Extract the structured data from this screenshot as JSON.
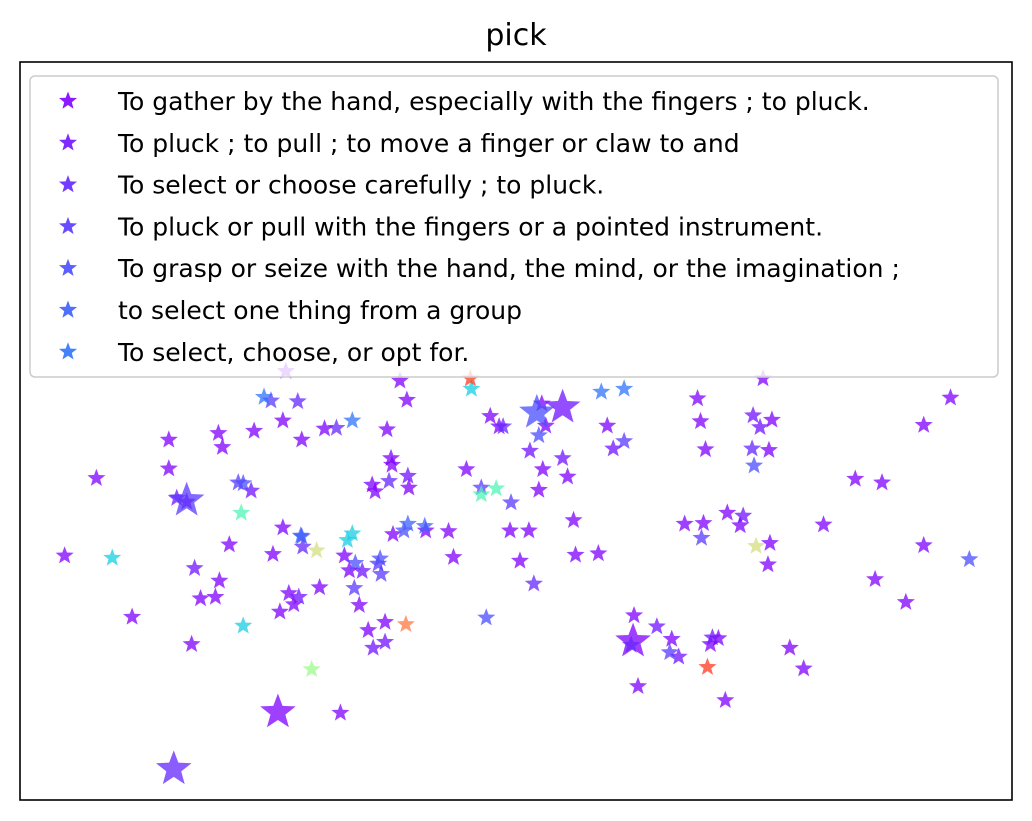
{
  "chart_data": {
    "type": "scatter",
    "title": "pick",
    "xlabel": "",
    "ylabel": "",
    "xlim": [
      0,
      100
    ],
    "ylim": [
      0,
      100
    ],
    "grid": false,
    "axis_ticks": false,
    "marker": "star",
    "legend_position": "upper-left",
    "series": [
      {
        "name": "To gather by the hand, especially with the fingers ; to pluck.",
        "color": "#8000ff",
        "points": [
          {
            "x": 4.5,
            "y": 33.1,
            "s": 1
          },
          {
            "x": 7.7,
            "y": 43.6,
            "s": 1
          },
          {
            "x": 11.3,
            "y": 24.8,
            "s": 1
          },
          {
            "x": 15.0,
            "y": 48.8,
            "s": 1
          },
          {
            "x": 15.0,
            "y": 44.9,
            "s": 1
          },
          {
            "x": 16.8,
            "y": 40.4,
            "s": 1
          },
          {
            "x": 17.3,
            "y": 21.1,
            "s": 1
          },
          {
            "x": 18.2,
            "y": 27.3,
            "s": 1
          },
          {
            "x": 19.7,
            "y": 27.5,
            "s": 1
          },
          {
            "x": 20.1,
            "y": 29.7,
            "s": 1
          },
          {
            "x": 20.0,
            "y": 49.7,
            "s": 1
          },
          {
            "x": 20.4,
            "y": 47.8,
            "s": 1
          },
          {
            "x": 21.1,
            "y": 34.6,
            "s": 1
          },
          {
            "x": 23.6,
            "y": 50.0,
            "s": 1
          },
          {
            "x": 26.0,
            "y": 11.9,
            "s": 3.5
          },
          {
            "x": 25.5,
            "y": 33.3,
            "s": 1
          },
          {
            "x": 26.2,
            "y": 25.5,
            "s": 1
          },
          {
            "x": 26.5,
            "y": 36.9,
            "s": 1
          },
          {
            "x": 26.5,
            "y": 51.4,
            "s": 1
          },
          {
            "x": 26.8,
            "y": 58.1,
            "s": 1
          },
          {
            "x": 27.1,
            "y": 28.0,
            "s": 1
          },
          {
            "x": 27.6,
            "y": 26.5,
            "s": 1
          },
          {
            "x": 28.4,
            "y": 48.8,
            "s": 1
          },
          {
            "x": 30.2,
            "y": 28.8,
            "s": 1
          },
          {
            "x": 30.7,
            "y": 50.3,
            "s": 1
          },
          {
            "x": 32.3,
            "y": 11.8,
            "s": 1
          },
          {
            "x": 32.7,
            "y": 33.1,
            "s": 1
          },
          {
            "x": 33.2,
            "y": 31.1,
            "s": 1
          },
          {
            "x": 34.2,
            "y": 26.4,
            "s": 1
          },
          {
            "x": 35.1,
            "y": 23.0,
            "s": 1
          },
          {
            "x": 35.5,
            "y": 42.7,
            "s": 1
          },
          {
            "x": 35.8,
            "y": 41.8,
            "s": 1
          },
          {
            "x": 36.8,
            "y": 24.1,
            "s": 1
          },
          {
            "x": 37.0,
            "y": 50.2,
            "s": 1
          },
          {
            "x": 37.4,
            "y": 46.3,
            "s": 1
          },
          {
            "x": 37.5,
            "y": 45.4,
            "s": 1
          },
          {
            "x": 37.6,
            "y": 36.0,
            "s": 1
          },
          {
            "x": 38.3,
            "y": 56.8,
            "s": 1
          },
          {
            "x": 39.0,
            "y": 54.2,
            "s": 1
          },
          {
            "x": 39.2,
            "y": 42.3,
            "s": 1
          },
          {
            "x": 40.9,
            "y": 36.5,
            "s": 1
          },
          {
            "x": 43.2,
            "y": 36.4,
            "s": 1
          },
          {
            "x": 43.7,
            "y": 32.9,
            "s": 1
          },
          {
            "x": 45.0,
            "y": 44.8,
            "s": 1
          },
          {
            "x": 47.4,
            "y": 52.0,
            "s": 1
          },
          {
            "x": 48.3,
            "y": 50.6,
            "s": 1
          },
          {
            "x": 49.4,
            "y": 36.5,
            "s": 1
          },
          {
            "x": 50.4,
            "y": 32.4,
            "s": 1
          },
          {
            "x": 51.3,
            "y": 36.5,
            "s": 1
          },
          {
            "x": 52.3,
            "y": 42.0,
            "s": 1
          },
          {
            "x": 52.6,
            "y": 53.7,
            "s": 1
          },
          {
            "x": 52.7,
            "y": 44.8,
            "s": 1
          },
          {
            "x": 53.0,
            "y": 50.7,
            "s": 1
          },
          {
            "x": 55.2,
            "y": 43.8,
            "s": 1
          },
          {
            "x": 55.8,
            "y": 37.9,
            "s": 1
          },
          {
            "x": 56.0,
            "y": 33.2,
            "s": 1
          },
          {
            "x": 58.3,
            "y": 33.4,
            "s": 1
          },
          {
            "x": 59.2,
            "y": 50.7,
            "s": 1
          },
          {
            "x": 61.9,
            "y": 25.0,
            "s": 1
          },
          {
            "x": 61.8,
            "y": 21.5,
            "s": 3.5
          },
          {
            "x": 62.3,
            "y": 15.4,
            "s": 1
          },
          {
            "x": 65.7,
            "y": 21.8,
            "s": 1
          },
          {
            "x": 67.0,
            "y": 37.4,
            "s": 1
          },
          {
            "x": 68.3,
            "y": 54.4,
            "s": 1
          },
          {
            "x": 68.6,
            "y": 51.3,
            "s": 1
          },
          {
            "x": 69.1,
            "y": 47.5,
            "s": 1
          },
          {
            "x": 68.9,
            "y": 37.5,
            "s": 1
          },
          {
            "x": 69.6,
            "y": 21.1,
            "s": 1
          },
          {
            "x": 70.4,
            "y": 21.9,
            "s": 1
          },
          {
            "x": 71.1,
            "y": 13.5,
            "s": 1
          },
          {
            "x": 71.3,
            "y": 38.9,
            "s": 1
          },
          {
            "x": 72.6,
            "y": 37.2,
            "s": 1
          },
          {
            "x": 74.9,
            "y": 57.1,
            "s": 1
          },
          {
            "x": 75.6,
            "y": 34.8,
            "s": 1
          },
          {
            "x": 75.5,
            "y": 47.4,
            "s": 1
          },
          {
            "x": 75.8,
            "y": 51.5,
            "s": 1
          },
          {
            "x": 75.4,
            "y": 31.9,
            "s": 1
          },
          {
            "x": 77.6,
            "y": 20.6,
            "s": 1
          },
          {
            "x": 79.0,
            "y": 17.8,
            "s": 1
          },
          {
            "x": 81.0,
            "y": 37.3,
            "s": 1
          },
          {
            "x": 84.2,
            "y": 43.5,
            "s": 1
          },
          {
            "x": 86.9,
            "y": 43.0,
            "s": 1
          },
          {
            "x": 86.2,
            "y": 29.9,
            "s": 1
          },
          {
            "x": 89.3,
            "y": 26.8,
            "s": 1
          },
          {
            "x": 91.1,
            "y": 34.5,
            "s": 1
          },
          {
            "x": 91.1,
            "y": 50.8,
            "s": 1
          },
          {
            "x": 93.8,
            "y": 54.5,
            "s": 1
          }
        ]
      },
      {
        "name": "To pluck ; to pull ; to move a finger or claw to and",
        "color": "#7213ff",
        "points": [
          {
            "x": 15.8,
            "y": 40.9,
            "s": 1
          },
          {
            "x": 17.6,
            "y": 31.4,
            "s": 1
          },
          {
            "x": 23.3,
            "y": 41.9,
            "s": 1
          },
          {
            "x": 28.1,
            "y": 27.5,
            "s": 1
          },
          {
            "x": 34.5,
            "y": 31.0,
            "s": 1
          },
          {
            "x": 35.6,
            "y": 20.6,
            "s": 1
          },
          {
            "x": 36.8,
            "y": 21.4,
            "s": 1
          },
          {
            "x": 39.1,
            "y": 43.9,
            "s": 1
          },
          {
            "x": 51.4,
            "y": 47.3,
            "s": 1
          },
          {
            "x": 54.7,
            "y": 53.2,
            "s": 3.5
          },
          {
            "x": 54.7,
            "y": 46.3,
            "s": 1
          },
          {
            "x": 59.8,
            "y": 47.6,
            "s": 1
          },
          {
            "x": 64.2,
            "y": 23.5,
            "s": 1
          },
          {
            "x": 66.4,
            "y": 19.4,
            "s": 1
          },
          {
            "x": 69.8,
            "y": 22.0,
            "s": 1
          },
          {
            "x": 72.9,
            "y": 38.5,
            "s": 1
          },
          {
            "x": 73.9,
            "y": 52.1,
            "s": 1
          },
          {
            "x": 74.6,
            "y": 50.5,
            "s": 1
          }
        ]
      },
      {
        "name": "To select or choose carefully ; to pluck.",
        "color": "#6427fe",
        "points": [
          {
            "x": 15.5,
            "y": 4.2,
            "s": 3.5
          },
          {
            "x": 28.0,
            "y": 54.0,
            "s": 1
          },
          {
            "x": 28.5,
            "y": 34.3,
            "s": 1
          },
          {
            "x": 31.9,
            "y": 50.4,
            "s": 1
          },
          {
            "x": 37.2,
            "y": 43.2,
            "s": 1
          },
          {
            "x": 48.7,
            "y": 50.6,
            "s": 1
          },
          {
            "x": 51.8,
            "y": 29.3,
            "s": 1
          },
          {
            "x": 61.6,
            "y": 21.0,
            "s": 1
          },
          {
            "x": 73.8,
            "y": 47.6,
            "s": 1
          }
        ]
      },
      {
        "name": "To pluck or pull with the fingers or a pointed instrument.",
        "color": "#583afe",
        "points": [
          {
            "x": 16.8,
            "y": 40.6,
            "s": 3.5
          },
          {
            "x": 25.3,
            "y": 54.1,
            "s": 1
          },
          {
            "x": 22.0,
            "y": 43.0,
            "s": 1
          },
          {
            "x": 33.7,
            "y": 28.7,
            "s": 1
          },
          {
            "x": 36.1,
            "y": 32.0,
            "s": 1
          },
          {
            "x": 36.4,
            "y": 30.6,
            "s": 1
          },
          {
            "x": 46.5,
            "y": 42.3,
            "s": 1
          },
          {
            "x": 49.5,
            "y": 40.3,
            "s": 1
          },
          {
            "x": 60.9,
            "y": 48.6,
            "s": 1
          },
          {
            "x": 65.5,
            "y": 20.0,
            "s": 1
          },
          {
            "x": 68.7,
            "y": 35.5,
            "s": 1
          }
        ]
      },
      {
        "name": "To grasp or seize with the hand, the mind, or the imagination ;",
        "color": "#4a4efd",
        "points": [
          {
            "x": 22.5,
            "y": 42.9,
            "s": 1
          },
          {
            "x": 28.4,
            "y": 35.7,
            "s": 1
          },
          {
            "x": 33.8,
            "y": 32.1,
            "s": 1
          },
          {
            "x": 36.3,
            "y": 32.7,
            "s": 1
          },
          {
            "x": 38.7,
            "y": 36.5,
            "s": 1
          },
          {
            "x": 47.0,
            "y": 24.7,
            "s": 1
          },
          {
            "x": 52.1,
            "y": 52.5,
            "s": 3.5
          },
          {
            "x": 52.3,
            "y": 49.4,
            "s": 1
          },
          {
            "x": 74.0,
            "y": 45.3,
            "s": 1
          },
          {
            "x": 95.7,
            "y": 32.6,
            "s": 1
          }
        ]
      },
      {
        "name": "to select one thing from a group",
        "color": "#3c61fc",
        "points": [
          {
            "x": 28.3,
            "y": 35.8,
            "s": 1
          },
          {
            "x": 39.1,
            "y": 37.4,
            "s": 1
          },
          {
            "x": 40.8,
            "y": 37.1,
            "s": 1
          }
        ]
      },
      {
        "name": "To select, choose, or opt for.",
        "color": "#2f74fb",
        "points": [
          {
            "x": 24.6,
            "y": 54.6,
            "s": 1
          },
          {
            "x": 33.5,
            "y": 51.4,
            "s": 1
          },
          {
            "x": 58.6,
            "y": 55.3,
            "s": 1
          },
          {
            "x": 60.9,
            "y": 55.7,
            "s": 1
          }
        ]
      },
      {
        "name": "",
        "color": "#18cde4",
        "points": [
          {
            "x": 9.3,
            "y": 32.8,
            "s": 1
          },
          {
            "x": 22.5,
            "y": 23.6,
            "s": 1
          },
          {
            "x": 33.0,
            "y": 35.2,
            "s": 1
          },
          {
            "x": 33.5,
            "y": 36.1,
            "s": 1
          },
          {
            "x": 45.5,
            "y": 55.7,
            "s": 1
          }
        ]
      },
      {
        "name": "",
        "color": "#50f5b5",
        "points": [
          {
            "x": 22.3,
            "y": 38.9,
            "s": 1
          },
          {
            "x": 46.5,
            "y": 41.4,
            "s": 1
          },
          {
            "x": 48.0,
            "y": 42.2,
            "s": 1
          }
        ]
      },
      {
        "name": "",
        "color": "#9cfb8b",
        "points": [
          {
            "x": 29.4,
            "y": 17.7,
            "s": 1
          }
        ]
      },
      {
        "name": "",
        "color": "#d4dd80",
        "points": [
          {
            "x": 29.9,
            "y": 33.8,
            "s": 1
          },
          {
            "x": 74.2,
            "y": 34.4,
            "s": 1
          }
        ]
      },
      {
        "name": "",
        "color": "#ff7a44",
        "points": [
          {
            "x": 38.9,
            "y": 23.8,
            "s": 1
          }
        ]
      },
      {
        "name": "",
        "color": "#ff3a1e",
        "points": [
          {
            "x": 45.4,
            "y": 57.1,
            "s": 1
          },
          {
            "x": 69.3,
            "y": 18.0,
            "s": 1
          }
        ]
      }
    ],
    "legend": [
      "To gather by the hand, especially with the fingers ; to pluck.",
      "To pluck ; to pull ; to move a finger or claw to and",
      "To select or choose carefully ; to pluck.",
      "To pluck or pull with the fingers or a pointed instrument.",
      "To grasp or seize with the hand, the mind, or the imagination ;",
      "to select one thing from a group",
      "To select, choose, or opt for."
    ],
    "legend_colors": [
      "#8000ff",
      "#7213ff",
      "#6427fe",
      "#583afe",
      "#4a4efd",
      "#3c61fc",
      "#2f74fb"
    ]
  }
}
